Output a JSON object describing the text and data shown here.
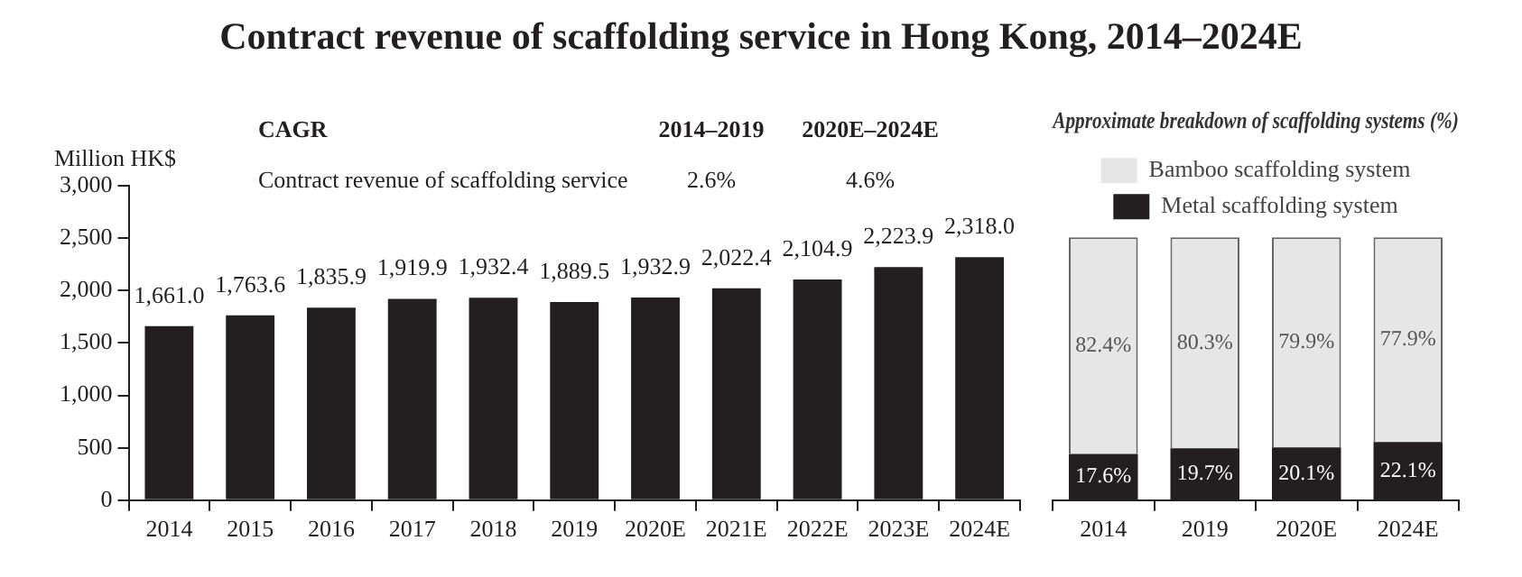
{
  "chart_data": [
    {
      "type": "bar",
      "title": "Contract revenue of scaffolding service in Hong Kong, 2014–2024E",
      "ylabel": "Million HK$",
      "annotations": [
        "CAGR",
        "2014–2019",
        "2020E–2024E",
        "Contract revenue of scaffolding service",
        "2.6%",
        "4.6%"
      ],
      "categories": [
        "2014",
        "2015",
        "2016",
        "2017",
        "2018",
        "2019",
        "2020E",
        "2021E",
        "2022E",
        "2023E",
        "2024E"
      ],
      "values": [
        1661.0,
        1763.6,
        1835.9,
        1919.9,
        1932.4,
        1889.5,
        1932.9,
        2022.4,
        2104.9,
        2223.9,
        2318.0
      ],
      "value_labels": [
        "1,661.0",
        "1,763.6",
        "1,835.9",
        "1,919.9",
        "1,932.4",
        "1,889.5",
        "1,932.9",
        "2,022.4",
        "2,104.9",
        "2,223.9",
        "2,318.0"
      ],
      "color": "#231f20",
      "ylim": [
        0,
        3000
      ],
      "yticks": [
        {
          "value": 0,
          "label": "0"
        },
        {
          "value": 500,
          "label": "500"
        },
        {
          "value": 1000,
          "label": "1,000"
        },
        {
          "value": 1500,
          "label": "1,500"
        },
        {
          "value": 2000,
          "label": "2,000"
        },
        {
          "value": 2500,
          "label": "2,500"
        },
        {
          "value": 3000,
          "label": "3,000"
        }
      ],
      "grid": false,
      "legend": false
    },
    {
      "type": "bar",
      "title": "Approximate breakdown of scaffolding systems (%)",
      "categories": [
        "2014",
        "2019",
        "2020E",
        "2024E"
      ],
      "stacked": true,
      "series": [
        {
          "name": "Metal scaffolding system",
          "color": "#231f20",
          "values": [
            17.6,
            19.7,
            20.1,
            22.1
          ],
          "value_labels": [
            "17.6%",
            "19.7%",
            "20.1%",
            "22.1%"
          ]
        },
        {
          "name": "Bamboo scaffolding system",
          "color": "#e6e6e6",
          "values": [
            82.4,
            80.3,
            79.9,
            77.9
          ],
          "value_labels": [
            "82.4%",
            "80.3%",
            "79.9%",
            "77.9%"
          ]
        }
      ],
      "ylim": [
        0,
        100
      ],
      "tick_labels": "x",
      "grid": false,
      "legend": "top"
    }
  ]
}
